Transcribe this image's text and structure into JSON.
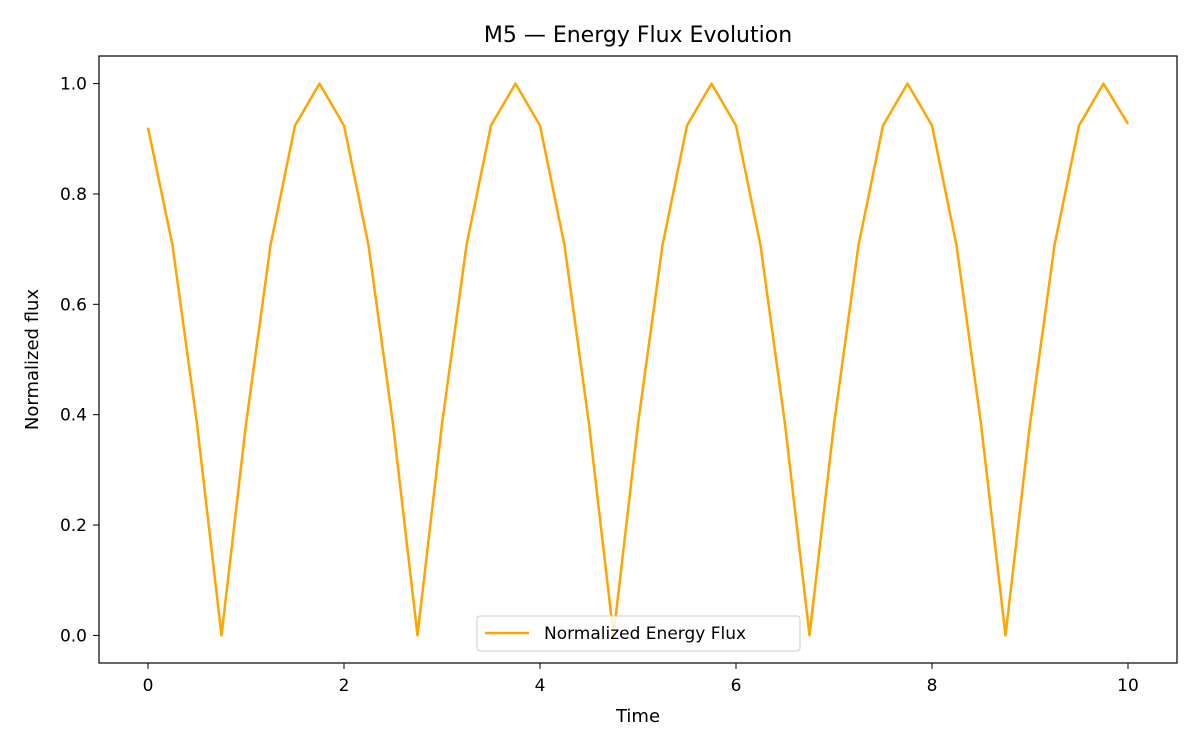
{
  "chart_data": {
    "type": "line",
    "title": "M5 — Energy Flux Evolution",
    "xlabel": "Time",
    "ylabel": "Normalized flux",
    "xlim": [
      -0.5,
      10.5
    ],
    "ylim": [
      -0.05,
      1.05
    ],
    "xticks": [
      0,
      2,
      4,
      6,
      8,
      10
    ],
    "xtick_labels": [
      "0",
      "2",
      "4",
      "6",
      "8",
      "10"
    ],
    "yticks": [
      0.0,
      0.2,
      0.4,
      0.6,
      0.8,
      1.0
    ],
    "ytick_labels": [
      "0.0",
      "0.2",
      "0.4",
      "0.6",
      "0.8",
      "1.0"
    ],
    "grid": false,
    "legend_position": "bottom-center",
    "series": [
      {
        "name": "Normalized Energy Flux",
        "color": "#FFA500",
        "x": [
          0,
          0.25,
          0.5,
          0.75,
          1.0,
          1.25,
          1.5,
          1.75,
          2.0,
          2.25,
          2.5,
          2.75,
          3.0,
          3.25,
          3.5,
          3.75,
          4.0,
          4.25,
          4.5,
          4.75,
          5.0,
          5.25,
          5.5,
          5.75,
          6.0,
          6.25,
          6.5,
          6.75,
          7.0,
          7.25,
          7.5,
          7.75,
          8.0,
          8.25,
          8.5,
          8.75,
          9.0,
          9.25,
          9.5,
          9.75,
          10.0
        ],
        "y": [
          0.92,
          0.707,
          0.383,
          0.0,
          0.383,
          0.707,
          0.924,
          1.0,
          0.924,
          0.707,
          0.383,
          0.0,
          0.383,
          0.707,
          0.924,
          1.0,
          0.924,
          0.707,
          0.383,
          0.0,
          0.383,
          0.707,
          0.924,
          1.0,
          0.924,
          0.707,
          0.383,
          0.0,
          0.383,
          0.707,
          0.924,
          1.0,
          0.924,
          0.707,
          0.383,
          0.0,
          0.383,
          0.707,
          0.924,
          1.0,
          0.927
        ]
      }
    ]
  }
}
